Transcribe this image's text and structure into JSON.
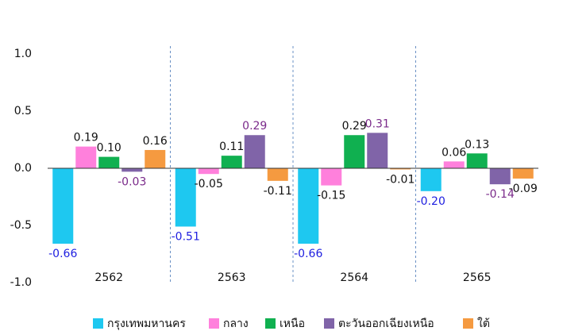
{
  "chart_data": {
    "type": "bar",
    "categories": [
      "2562",
      "2563",
      "2564",
      "2565"
    ],
    "series": [
      {
        "name": "กรุงเทพมหานคร",
        "color": "#1ec8f0",
        "label_color": "#2020e0",
        "values": [
          -0.66,
          -0.51,
          -0.66,
          -0.2
        ],
        "value_labels": [
          "-0.66",
          "-0.51",
          "-0.66",
          "-0.20"
        ]
      },
      {
        "name": "กลาง",
        "color": "#ff80dc",
        "label_color": "#111111",
        "values": [
          0.19,
          -0.05,
          -0.15,
          0.06
        ],
        "value_labels": [
          "0.19",
          "-0.05",
          "-0.15",
          "0.06"
        ]
      },
      {
        "name": "เหนือ",
        "color": "#10b050",
        "label_color": "#111111",
        "values": [
          0.1,
          0.11,
          0.29,
          0.13
        ],
        "value_labels": [
          "0.10",
          "0.11",
          "0.29",
          "0.13"
        ]
      },
      {
        "name": "ตะวันออกเฉียงเหนือ",
        "color": "#8064a8",
        "label_color": "#7a2a8a",
        "values": [
          -0.03,
          0.29,
          0.31,
          -0.14
        ],
        "value_labels": [
          "-0.03",
          "0.29",
          "0.31",
          "-0.14"
        ]
      },
      {
        "name": "ใต้",
        "color": "#f59a40",
        "label_color": "#111111",
        "values": [
          0.16,
          -0.11,
          -0.01,
          -0.09
        ],
        "value_labels": [
          "0.16",
          "-0.11",
          "-0.01",
          "-0.09"
        ]
      }
    ],
    "ylim": [
      -1,
      1
    ],
    "yticks": [
      {
        "value": -1,
        "label": "-1.0"
      },
      {
        "value": -0.5,
        "label": "-0.5"
      },
      {
        "value": 0,
        "label": "0.0"
      },
      {
        "value": 0.5,
        "label": "0.5"
      },
      {
        "value": 1,
        "label": "1.0"
      }
    ],
    "legend": "bottom"
  }
}
